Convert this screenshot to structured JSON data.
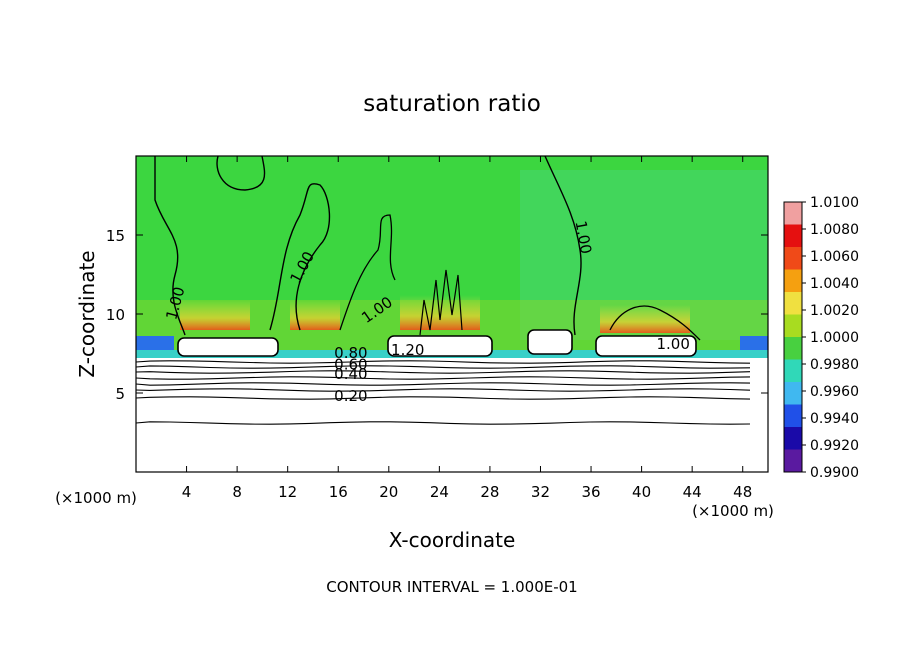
{
  "chart_data": {
    "type": "heatmap",
    "title": "saturation ratio",
    "xlabel": "X-coordinate",
    "ylabel": "Z-coordinate",
    "x_unit": "(×1000 m)",
    "y_unit": "(×1000 m)",
    "xlim": [
      0,
      50
    ],
    "ylim": [
      0,
      20
    ],
    "x_ticks": [
      4,
      8,
      12,
      16,
      20,
      24,
      28,
      32,
      36,
      40,
      44,
      48
    ],
    "y_ticks": [
      5,
      10,
      15
    ],
    "footer": "CONTOUR INTERVAL = 1.000E-01",
    "colorbar": {
      "levels": [
        "1.0100",
        "1.0080",
        "1.0060",
        "1.0040",
        "1.0020",
        "1.0000",
        "0.9980",
        "0.9960",
        "0.9940",
        "0.9920",
        "0.9900"
      ],
      "colors": [
        "#f0a0a0",
        "#e51010",
        "#f04a18",
        "#f5a010",
        "#f0e040",
        "#a8dc20",
        "#48d040",
        "#30d8b8",
        "#40b8f0",
        "#2050e8",
        "#1a0aa8",
        "#5a1aa0"
      ]
    },
    "contour_labels": [
      {
        "text": "1.00",
        "x": 3.5,
        "y": 10.6,
        "angle": -75
      },
      {
        "text": "1.00",
        "x": 13.5,
        "y": 12.8,
        "angle": -62
      },
      {
        "text": "1.00",
        "x": 19.3,
        "y": 10.0,
        "angle": -35
      },
      {
        "text": "1.00",
        "x": 35.0,
        "y": 14.8,
        "angle": 80
      },
      {
        "text": "1.00",
        "x": 42.5,
        "y": 7.8,
        "angle": 0
      },
      {
        "text": "1.20",
        "x": 21.5,
        "y": 7.4,
        "angle": 0
      },
      {
        "text": "0.80",
        "x": 17.0,
        "y": 7.2,
        "angle": 0
      },
      {
        "text": "0.60",
        "x": 17.0,
        "y": 6.5,
        "angle": 0
      },
      {
        "text": "0.40",
        "x": 17.0,
        "y": 5.9,
        "angle": 0
      },
      {
        "text": "0.20",
        "x": 17.0,
        "y": 4.5,
        "angle": 0
      }
    ]
  }
}
